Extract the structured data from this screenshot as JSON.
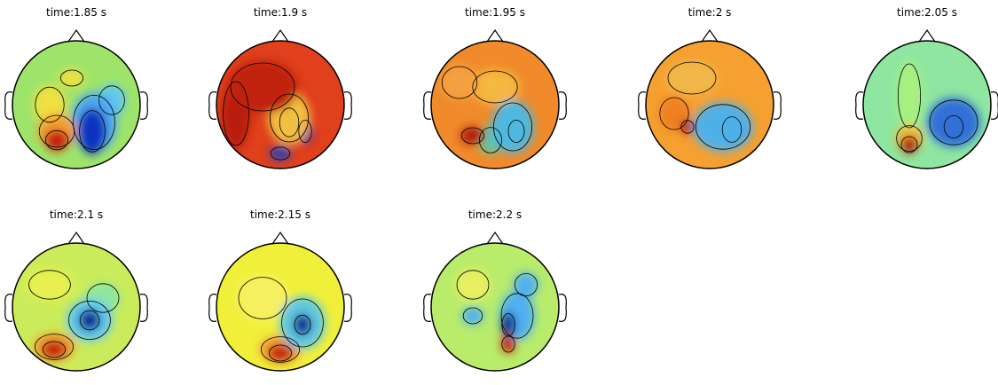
{
  "panels": [
    {
      "title": "time:1.85 s"
    },
    {
      "title": "time:1.9 s"
    },
    {
      "title": "time:1.95 s"
    },
    {
      "title": "time:2 s"
    },
    {
      "title": "time:2.05 s"
    },
    {
      "title": "time:2.1 s"
    },
    {
      "title": "time:2.15 s"
    },
    {
      "title": "time:2.2 s"
    }
  ]
}
